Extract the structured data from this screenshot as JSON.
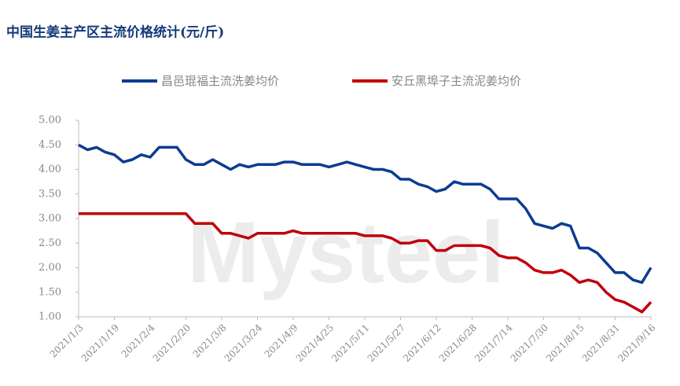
{
  "chart_data": {
    "type": "line",
    "title": "中国生姜主产区主流价格统计(元/斤)",
    "watermark": "Mysteel",
    "x": [
      "2021/1/3",
      "2021/1/7",
      "2021/1/11",
      "2021/1/15",
      "2021/1/19",
      "2021/1/23",
      "2021/1/27",
      "2021/1/31",
      "2021/2/4",
      "2021/2/8",
      "2021/2/12",
      "2021/2/16",
      "2021/2/20",
      "2021/2/24",
      "2021/2/28",
      "2021/3/4",
      "2021/3/8",
      "2021/3/12",
      "2021/3/16",
      "2021/3/20",
      "2021/3/24",
      "2021/3/28",
      "2021/4/1",
      "2021/4/5",
      "2021/4/9",
      "2021/4/13",
      "2021/4/17",
      "2021/4/21",
      "2021/4/25",
      "2021/4/29",
      "2021/5/3",
      "2021/5/7",
      "2021/5/11",
      "2021/5/15",
      "2021/5/19",
      "2021/5/23",
      "2021/5/27",
      "2021/5/31",
      "2021/6/4",
      "2021/6/8",
      "2021/6/12",
      "2021/6/16",
      "2021/6/20",
      "2021/6/24",
      "2021/6/28",
      "2021/7/2",
      "2021/7/6",
      "2021/7/10",
      "2021/7/14",
      "2021/7/18",
      "2021/7/22",
      "2021/7/26",
      "2021/7/30",
      "2021/8/3",
      "2021/8/7",
      "2021/8/11",
      "2021/8/15",
      "2021/8/19",
      "2021/8/23",
      "2021/8/27",
      "2021/8/31",
      "2021/9/4",
      "2021/9/8",
      "2021/9/12",
      "2021/9/16"
    ],
    "series": [
      {
        "name": "昌邑琨福主流洗姜均价",
        "color": "#0b3d91",
        "values": [
          4.5,
          4.4,
          4.45,
          4.35,
          4.3,
          4.15,
          4.2,
          4.3,
          4.25,
          4.45,
          4.45,
          4.45,
          4.2,
          4.1,
          4.1,
          4.2,
          4.1,
          4.0,
          4.1,
          4.05,
          4.1,
          4.1,
          4.1,
          4.15,
          4.15,
          4.1,
          4.1,
          4.1,
          4.05,
          4.1,
          4.15,
          4.1,
          4.05,
          4.0,
          4.0,
          3.95,
          3.8,
          3.8,
          3.7,
          3.65,
          3.55,
          3.6,
          3.75,
          3.7,
          3.7,
          3.7,
          3.6,
          3.4,
          3.4,
          3.4,
          3.2,
          2.9,
          2.85,
          2.8,
          2.9,
          2.85,
          2.4,
          2.4,
          2.3,
          2.1,
          1.9,
          1.9,
          1.75,
          1.7,
          2.0
        ]
      },
      {
        "name": "安丘黑埠子主流泥姜均价",
        "color": "#c0000b",
        "values": [
          3.1,
          3.1,
          3.1,
          3.1,
          3.1,
          3.1,
          3.1,
          3.1,
          3.1,
          3.1,
          3.1,
          3.1,
          3.1,
          2.9,
          2.9,
          2.9,
          2.7,
          2.7,
          2.65,
          2.6,
          2.7,
          2.7,
          2.7,
          2.7,
          2.75,
          2.7,
          2.7,
          2.7,
          2.7,
          2.7,
          2.7,
          2.7,
          2.65,
          2.65,
          2.65,
          2.6,
          2.5,
          2.5,
          2.55,
          2.55,
          2.35,
          2.35,
          2.45,
          2.45,
          2.45,
          2.45,
          2.4,
          2.25,
          2.2,
          2.2,
          2.1,
          1.95,
          1.9,
          1.9,
          1.95,
          1.85,
          1.7,
          1.75,
          1.7,
          1.5,
          1.35,
          1.3,
          1.2,
          1.1,
          1.3
        ]
      }
    ],
    "xticks": [
      "2021/1/3",
      "2021/1/19",
      "2021/2/4",
      "2021/2/20",
      "2021/3/8",
      "2021/3/24",
      "2021/4/9",
      "2021/4/25",
      "2021/5/11",
      "2021/5/27",
      "2021/6/12",
      "2021/6/28",
      "2021/7/14",
      "2021/7/30",
      "2021/8/15",
      "2021/8/31",
      "2021/9/16"
    ],
    "ylim": [
      1,
      5
    ],
    "yticks": [
      {
        "value": 1,
        "label": "1.00"
      },
      {
        "value": 1.5,
        "label": "1.50"
      },
      {
        "value": 2,
        "label": "2.00"
      },
      {
        "value": 2.5,
        "label": "2.50"
      },
      {
        "value": 3,
        "label": "3.00"
      },
      {
        "value": 3.5,
        "label": "3.50"
      },
      {
        "value": 4,
        "label": "4.00"
      },
      {
        "value": 4.5,
        "label": "4.50"
      },
      {
        "value": 5,
        "label": "5.00"
      }
    ],
    "legend": "top",
    "grid": false
  }
}
